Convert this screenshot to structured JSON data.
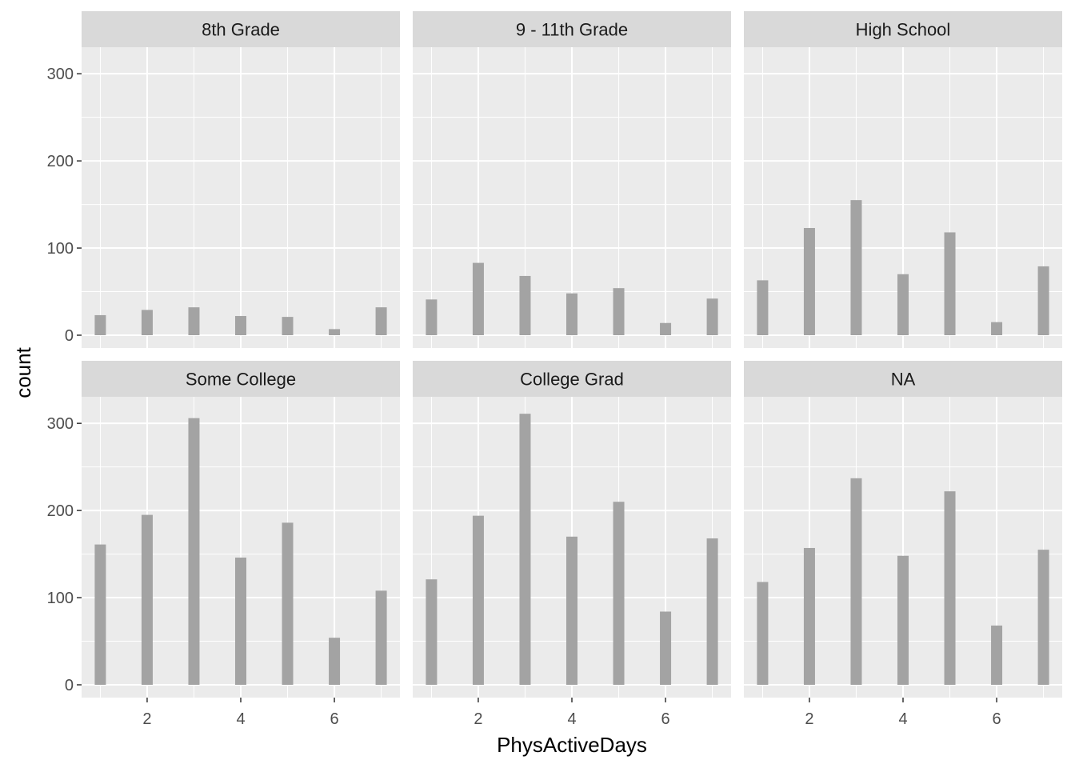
{
  "chart_data": {
    "type": "bar",
    "facet_layout": "2x3",
    "xlabel": "PhysActiveDays",
    "ylabel": "count",
    "x_ticks": [
      2,
      4,
      6
    ],
    "y_ticks": [
      0,
      100,
      200,
      300
    ],
    "xlim": [
      0.6,
      7.4
    ],
    "ylim": [
      0,
      330
    ],
    "grid": true,
    "colors": {
      "panel_bg": "#EBEBEB",
      "strip_bg": "#D9D9D9",
      "bar": "#A3A3A3",
      "grid_major": "#FFFFFF",
      "text": "#1A1A1A",
      "tick_text": "#4D4D4D"
    },
    "x": [
      1,
      2,
      3,
      4,
      5,
      6,
      7
    ],
    "facets": [
      {
        "name": "8th Grade",
        "values": [
          23,
          29,
          32,
          22,
          21,
          7,
          32
        ]
      },
      {
        "name": "9 - 11th Grade",
        "values": [
          41,
          83,
          68,
          48,
          54,
          14,
          42
        ]
      },
      {
        "name": "High School",
        "values": [
          63,
          123,
          155,
          70,
          118,
          15,
          79
        ]
      },
      {
        "name": "Some College",
        "values": [
          161,
          195,
          306,
          146,
          186,
          54,
          108
        ]
      },
      {
        "name": "College Grad",
        "values": [
          121,
          194,
          311,
          170,
          210,
          84,
          168
        ]
      },
      {
        "name": "NA",
        "values": [
          118,
          157,
          237,
          148,
          222,
          68,
          155
        ]
      }
    ]
  }
}
